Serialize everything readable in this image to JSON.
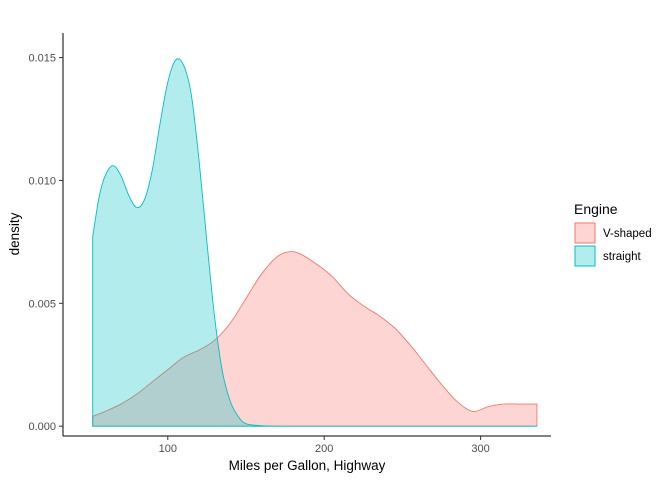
{
  "chart_data": {
    "type": "area",
    "subtype": "density",
    "xlabel": "Miles per Gallon, Highway",
    "ylabel": "density",
    "xlim": [
      33,
      345
    ],
    "ylim": [
      -0.0004,
      0.016
    ],
    "x_ticks": [
      100,
      200,
      300
    ],
    "y_ticks": [
      0.0,
      0.005,
      0.01,
      0.015
    ],
    "y_tick_labels": [
      "0.000",
      "0.005",
      "0.010",
      "0.015"
    ],
    "grid": false,
    "legend": {
      "title": "Engine",
      "position": "right"
    },
    "series": [
      {
        "name": "V-shaped",
        "fill": "#F8766D",
        "fill_opacity": 0.3,
        "points": [
          [
            52,
            0.0004
          ],
          [
            60,
            0.0006
          ],
          [
            70,
            0.0009
          ],
          [
            80,
            0.0013
          ],
          [
            90,
            0.0018
          ],
          [
            100,
            0.0023
          ],
          [
            110,
            0.0028
          ],
          [
            120,
            0.0031
          ],
          [
            130,
            0.0035
          ],
          [
            140,
            0.0042
          ],
          [
            150,
            0.0052
          ],
          [
            160,
            0.0062
          ],
          [
            170,
            0.0069
          ],
          [
            178,
            0.0071
          ],
          [
            185,
            0.007
          ],
          [
            195,
            0.0066
          ],
          [
            205,
            0.0061
          ],
          [
            215,
            0.0054
          ],
          [
            225,
            0.0049
          ],
          [
            235,
            0.0045
          ],
          [
            245,
            0.004
          ],
          [
            255,
            0.0033
          ],
          [
            265,
            0.0025
          ],
          [
            275,
            0.0017
          ],
          [
            285,
            0.001
          ],
          [
            295,
            0.0006
          ],
          [
            305,
            0.0008
          ],
          [
            315,
            0.0009
          ],
          [
            325,
            0.0009
          ],
          [
            336,
            0.0009
          ]
        ]
      },
      {
        "name": "straight",
        "fill": "#00BFC4",
        "fill_opacity": 0.3,
        "points": [
          [
            52,
            0.0077
          ],
          [
            56,
            0.0093
          ],
          [
            60,
            0.0102
          ],
          [
            65,
            0.0106
          ],
          [
            70,
            0.0102
          ],
          [
            75,
            0.0094
          ],
          [
            80,
            0.0089
          ],
          [
            85,
            0.0092
          ],
          [
            90,
            0.0104
          ],
          [
            95,
            0.0123
          ],
          [
            100,
            0.014
          ],
          [
            105,
            0.0149
          ],
          [
            110,
            0.0147
          ],
          [
            115,
            0.0135
          ],
          [
            120,
            0.0108
          ],
          [
            125,
            0.0075
          ],
          [
            130,
            0.0044
          ],
          [
            135,
            0.0022
          ],
          [
            140,
            0.001
          ],
          [
            145,
            0.0004
          ],
          [
            150,
            0.0001
          ],
          [
            160,
            2e-05
          ],
          [
            175,
            0.0
          ],
          [
            200,
            0.0
          ],
          [
            250,
            0.0
          ],
          [
            300,
            0.0
          ],
          [
            336,
            0.0
          ]
        ]
      }
    ]
  }
}
